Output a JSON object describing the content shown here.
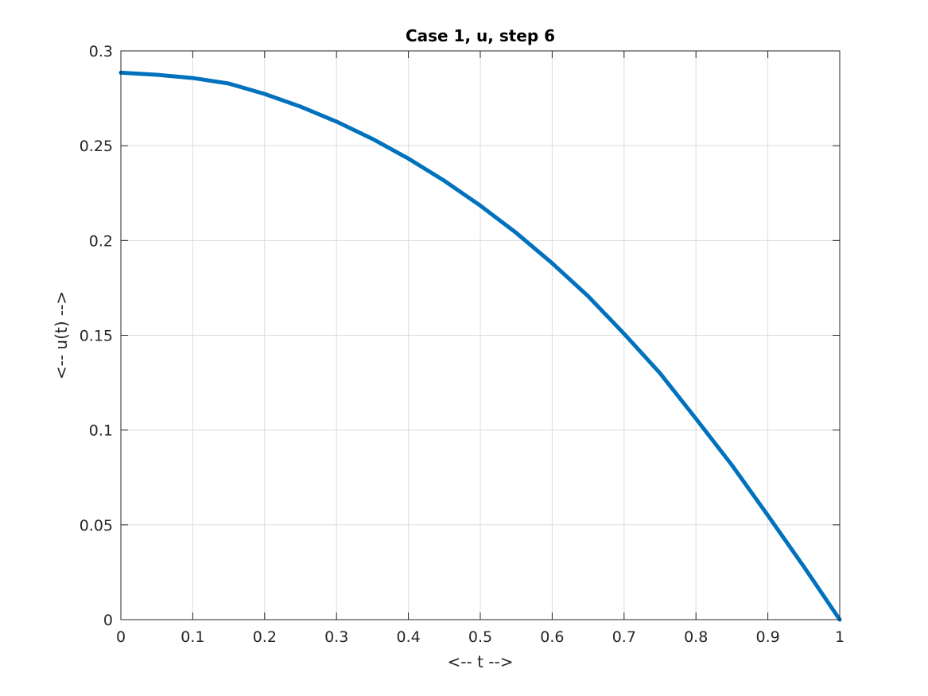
{
  "chart_data": {
    "type": "line",
    "title": "Case 1, u, step 6",
    "xlabel": "<-- t -->",
    "ylabel": "<-- u(t) -->",
    "xlim": [
      0,
      1
    ],
    "ylim": [
      0,
      0.3
    ],
    "xticks": [
      0,
      0.1,
      0.2,
      0.3,
      0.4,
      0.5,
      0.6,
      0.7,
      0.8,
      0.9,
      1
    ],
    "xtick_labels": [
      "0",
      "0.1",
      "0.2",
      "0.3",
      "0.4",
      "0.5",
      "0.6",
      "0.7",
      "0.8",
      "0.9",
      "1"
    ],
    "yticks": [
      0,
      0.05,
      0.1,
      0.15,
      0.2,
      0.25,
      0.3
    ],
    "ytick_labels": [
      "0",
      "0.05",
      "0.1",
      "0.15",
      "0.2",
      "0.25",
      "0.3"
    ],
    "grid": true,
    "series": [
      {
        "color": "#0072bd",
        "x": [
          0,
          0.05,
          0.1,
          0.15,
          0.2,
          0.25,
          0.3,
          0.35,
          0.4,
          0.45,
          0.5,
          0.55,
          0.6,
          0.65,
          0.7,
          0.75,
          0.8,
          0.85,
          0.9,
          0.95,
          1
        ],
        "y": [
          0.2885,
          0.2874,
          0.2857,
          0.2828,
          0.2773,
          0.2706,
          0.2627,
          0.2536,
          0.2432,
          0.2315,
          0.2184,
          0.204,
          0.188,
          0.1706,
          0.1508,
          0.13,
          0.106,
          0.0815,
          0.055,
          0.028,
          0.0
        ]
      }
    ]
  }
}
